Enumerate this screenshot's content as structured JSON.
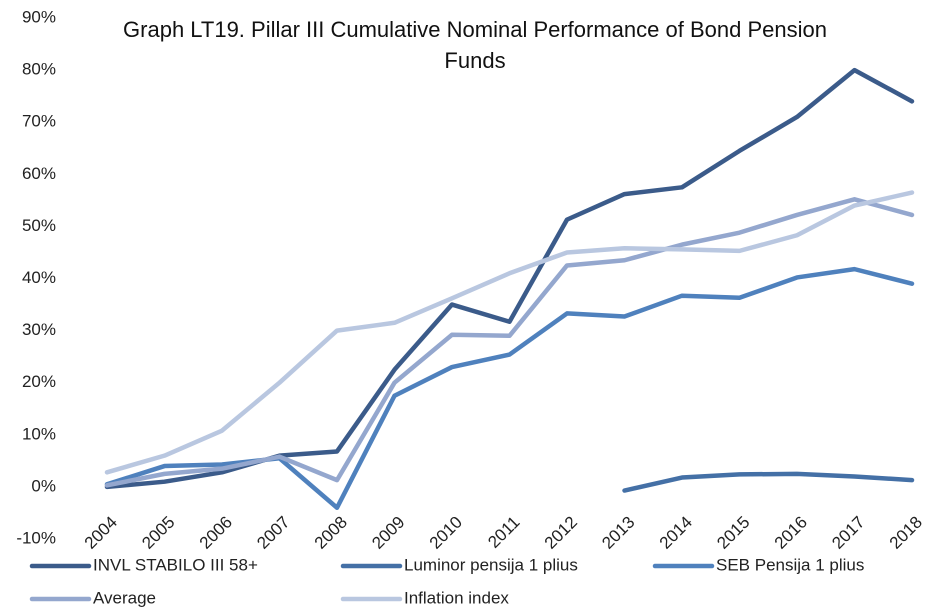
{
  "chart_data": {
    "type": "line",
    "title": "Graph LT19. Pillar III Cumulative Nominal Performance of Bond Pension Funds",
    "categories": [
      "2004",
      "2005",
      "2006",
      "2007",
      "2008",
      "2009",
      "2010",
      "2011",
      "2012",
      "2013",
      "2014",
      "2015",
      "2016",
      "2017",
      "2018"
    ],
    "series": [
      {
        "name": "INVL STABILO III 58+",
        "color": "#3b5b8a",
        "values": [
          0,
          1,
          2.8,
          6,
          6.8,
          22.5,
          35,
          31.7,
          51.3,
          56.2,
          57.5,
          64.5,
          71,
          80,
          74
        ]
      },
      {
        "name": "Luminor pensija 1 plius",
        "color": "#4470a6",
        "values": [
          null,
          null,
          null,
          null,
          null,
          null,
          null,
          null,
          null,
          -0.7,
          1.8,
          2.4,
          2.5,
          2,
          1.3
        ]
      },
      {
        "name": "SEB Pensija 1 plius",
        "color": "#4f81bd",
        "values": [
          0.5,
          4,
          4.3,
          5.5,
          -4,
          17.5,
          23,
          25.4,
          33.3,
          32.7,
          36.7,
          36.3,
          40.2,
          41.8,
          39
        ]
      },
      {
        "name": "Average",
        "color": "#94a7ce",
        "values": [
          0.3,
          2.5,
          3.5,
          5.8,
          1.3,
          20,
          29.2,
          29,
          42.5,
          43.5,
          46.5,
          48.8,
          52.2,
          55.2,
          52.2
        ]
      },
      {
        "name": "Inflation index",
        "color": "#b9c7e0",
        "values": [
          2.8,
          6,
          10.8,
          20,
          30,
          31.5,
          36.2,
          41,
          45,
          45.8,
          45.6,
          45.3,
          48.3,
          54,
          56.5
        ]
      }
    ],
    "ylim": [
      -10,
      90
    ],
    "yticks": [
      {
        "value": -10,
        "label": "-10%"
      },
      {
        "value": 0,
        "label": "0%"
      },
      {
        "value": 10,
        "label": "10%"
      },
      {
        "value": 20,
        "label": "20%"
      },
      {
        "value": 30,
        "label": "30%"
      },
      {
        "value": 40,
        "label": "40%"
      },
      {
        "value": 50,
        "label": "50%"
      },
      {
        "value": 60,
        "label": "60%"
      },
      {
        "value": 70,
        "label": "70%"
      },
      {
        "value": 80,
        "label": "80%"
      },
      {
        "value": 90,
        "label": "90%"
      }
    ],
    "grid": false
  }
}
